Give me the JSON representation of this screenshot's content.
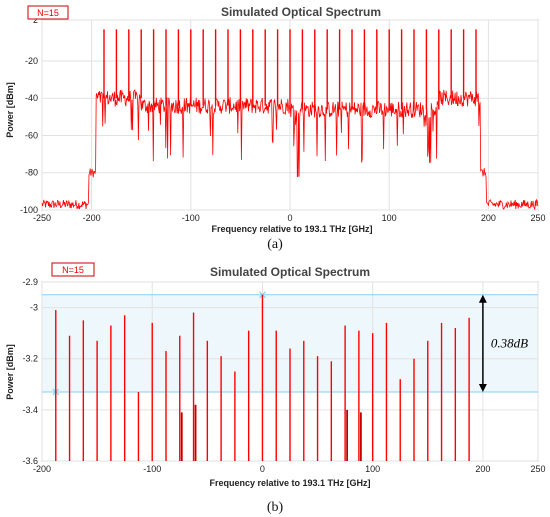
{
  "figure": {
    "caption_a": "(a)",
    "caption_b": "(b)"
  },
  "colors": {
    "signal": "#ff0000",
    "grid": "#e2e2e2",
    "band_line": "#87cefa",
    "band_fill": "#eef8fc",
    "arrow": "#000000"
  },
  "chart_data": [
    {
      "type": "line",
      "badge": "N=15",
      "title": "Simulated Optical Spectrum",
      "xlabel": "Frequency relative to 193.1 THz [GHz]",
      "ylabel": "Power [dBm]",
      "xlim": [
        -250,
        250
      ],
      "ylim": [
        -100,
        2
      ],
      "x_ticks": [
        -250,
        -200,
        -100,
        0,
        100,
        200,
        250
      ],
      "y_ticks": [
        2,
        -20,
        -40,
        -60,
        -80,
        -100
      ],
      "grid": true,
      "series": [
        {
          "description": "noise floor: ~-97 dBm outside band, ~-80 dBm shoulder at the band edges, ~-40 to -50 dBm inside",
          "floor_segments": [
            {
              "x": [
                -250,
                -203
              ],
              "y": -97
            },
            {
              "x": [
                -203,
                -196
              ],
              "y": -80
            },
            {
              "x": [
                -196,
                -150
              ],
              "y": -40
            },
            {
              "x": [
                -150,
                0
              ],
              "y": -44
            },
            {
              "x": [
                0,
                150
              ],
              "y": -46
            },
            {
              "x": [
                150,
                192
              ],
              "y": -40
            },
            {
              "x": [
                192,
                198
              ],
              "y": -80
            },
            {
              "x": [
                198,
                250
              ],
              "y": -97
            }
          ],
          "lines": {
            "x": [
              -187.5,
              -175,
              -162.5,
              -150,
              -137.5,
              -125,
              -112.5,
              -100,
              -87.5,
              -75,
              -62.5,
              -50,
              -37.5,
              -25,
              -12.5,
              0,
              12.5,
              25,
              37.5,
              50,
              62.5,
              75,
              87.5,
              100,
              112.5,
              125,
              137.5,
              150,
              162.5,
              175,
              187.5
            ],
            "y": -3
          }
        }
      ]
    },
    {
      "type": "bar",
      "badge": "N=15",
      "title": "Simulated Optical Spectrum",
      "xlabel": "Frequency relative to 193.1 THz [GHz]",
      "ylabel": "Power [dBm]",
      "xlim": [
        -200,
        250
      ],
      "ylim": [
        -3.6,
        -2.9
      ],
      "x_ticks": [
        -200,
        -100,
        0,
        100,
        200,
        250
      ],
      "y_ticks": [
        -2.9,
        -3,
        -3.2,
        -3.4,
        -3.6
      ],
      "grid": true,
      "markers": {
        "upper": -2.95,
        "lower": -3.33
      },
      "annotation": "0.38dB",
      "x": [
        -187.5,
        -175,
        -162.5,
        -150,
        -137.5,
        -125,
        -112.5,
        -100,
        -87.5,
        -75,
        -62.5,
        -50,
        -37.5,
        -25,
        -12.5,
        0,
        12.5,
        25,
        37.5,
        50,
        62.5,
        75,
        87.5,
        100,
        112.5,
        125,
        137.5,
        150,
        162.5,
        175,
        187.5
      ],
      "values": [
        -3.01,
        -3.11,
        -3.05,
        -3.13,
        -3.07,
        -3.03,
        -3.33,
        -3.06,
        -3.17,
        -3.11,
        -3.02,
        -3.13,
        -3.19,
        -3.25,
        -3.09,
        -2.95,
        -3.09,
        -3.16,
        -3.13,
        -3.19,
        -3.21,
        -3.07,
        -3.09,
        -3.1,
        -3.06,
        -3.28,
        -3.2,
        -3.13,
        -3.06,
        -3.08,
        -3.04
      ],
      "dips": {
        "x": [
          -75,
          -62.5,
          75,
          87.5
        ],
        "y": [
          -3.41,
          -3.38,
          -3.4,
          -3.41
        ]
      }
    }
  ]
}
